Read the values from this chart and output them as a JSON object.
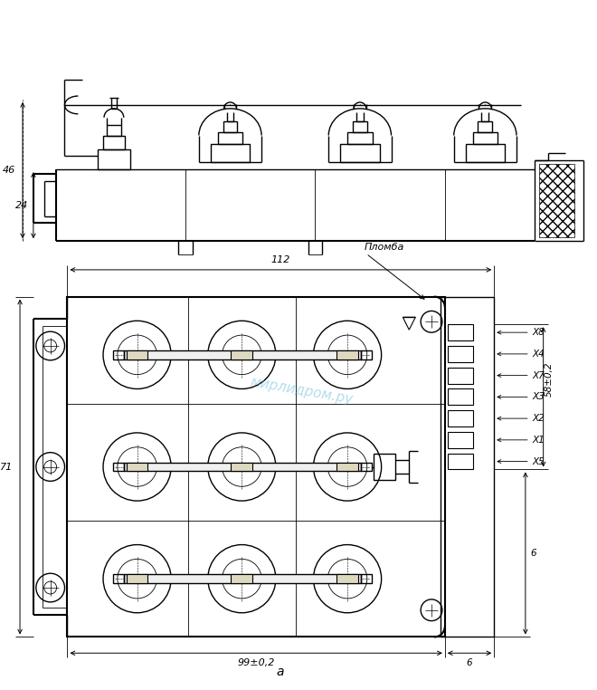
{
  "bg_color": "#ffffff",
  "line_color": "#000000",
  "dim_46": "46",
  "dim_24": "24",
  "dim_112": "112",
  "dim_71": "71",
  "dim_99": "99±0,2",
  "dim_6_h": "6",
  "dim_6_v": "6",
  "dim_58": "58±0,2",
  "label_plomba": "Пломба",
  "label_a": "а",
  "labels_x": [
    "X8",
    "X4",
    "X7",
    "X3",
    "X2",
    "X1",
    "X5"
  ],
  "watermark": "мирлидром.ру"
}
